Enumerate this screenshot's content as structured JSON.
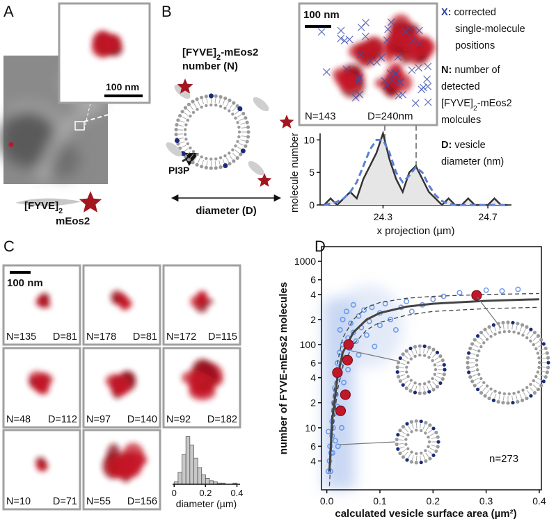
{
  "panel_labels": [
    "A",
    "B",
    "C",
    "D"
  ],
  "panel_a": {
    "scale_bar": "100 nm",
    "construct": {
      "base": "[FYVE]",
      "sub": "2"
    },
    "tag": "mEos2"
  },
  "panel_b": {
    "construct": {
      "base": "[FYVE]",
      "sub": "2",
      "rest": "-mEos2"
    },
    "construct_line2": "number (N)",
    "lipid": "PI3P",
    "diameter": "diameter (D)",
    "scale_bar": "100 nm",
    "n_label": "N=143",
    "d_label": "D=240nm",
    "legend_x": {
      "key": "X:",
      "lines": [
        "corrected",
        "single-molecule",
        "positions"
      ]
    },
    "legend_n": {
      "key": "N:",
      "lines": [
        "number of",
        "detected"
      ],
      "construct": {
        "base": "[FYVE]",
        "sub": "2",
        "rest": "-mEos2"
      },
      "last": "molcules"
    },
    "legend_d": {
      "key": "D:",
      "lines": [
        "vesicle",
        "diameter (nm)"
      ]
    }
  },
  "panel_c": {
    "scale_bar": "100 nm",
    "tiles": [
      {
        "n": "N=135",
        "d": "D=81"
      },
      {
        "n": "N=178",
        "d": "D=81"
      },
      {
        "n": "N=172",
        "d": "D=115"
      },
      {
        "n": "N=48",
        "d": "D=112"
      },
      {
        "n": "N=97",
        "d": "D=140"
      },
      {
        "n": "N=92",
        "d": "D=182"
      },
      {
        "n": "N=10",
        "d": "D=71"
      },
      {
        "n": "N=55",
        "d": "D=156"
      }
    ]
  },
  "chart_data": [
    {
      "type": "line",
      "xlabel": "x projection (µm)",
      "ylabel": "molecule number",
      "x": [
        24.075,
        24.1,
        24.125,
        24.15,
        24.175,
        24.2,
        24.225,
        24.25,
        24.275,
        24.3,
        24.325,
        24.35,
        24.375,
        24.4,
        24.425,
        24.45,
        24.475,
        24.5,
        24.525,
        24.55,
        24.575,
        24.6,
        24.625,
        24.65,
        24.675,
        24.7,
        24.725,
        24.75,
        24.775
      ],
      "series": [
        {
          "color": "#333333",
          "dashed": false,
          "values": [
            0,
            1,
            0,
            1,
            2,
            1,
            4,
            6,
            8,
            11,
            7,
            4,
            2,
            5,
            6,
            4,
            2,
            1,
            0,
            1,
            0,
            0,
            1,
            0,
            0,
            0,
            1,
            0,
            0
          ]
        },
        {
          "color": "#5b7fd6",
          "dashed": true,
          "values": [
            0,
            0.2,
            0.5,
            1,
            2,
            3.5,
            6,
            8.5,
            10,
            10,
            8,
            5,
            3.5,
            4.5,
            5.8,
            5,
            3,
            1.5,
            0.6,
            0.2,
            0,
            0,
            0,
            0,
            0,
            0,
            0,
            0,
            0
          ]
        }
      ],
      "xlim": [
        24.06,
        24.79
      ],
      "xticks": [
        24.3,
        24.7
      ],
      "ylim": [
        0,
        11
      ],
      "yticks": [
        0,
        5,
        10
      ]
    },
    {
      "type": "histogram",
      "xlabel": "diameter (µm)",
      "bins": [
        0,
        0.025,
        0.05,
        0.075,
        0.1,
        0.125,
        0.15,
        0.175,
        0.2,
        0.225,
        0.25,
        0.275,
        0.3,
        0.325,
        0.35,
        0.375,
        0.4
      ],
      "values": [
        2,
        10,
        25,
        40,
        33,
        22,
        14,
        8,
        5,
        3,
        2,
        1,
        1,
        0,
        0,
        1
      ],
      "color": "#c8c8c8",
      "xlim": [
        -0.01,
        0.42
      ],
      "xticks": [
        0,
        0.2,
        0.4
      ],
      "ylim": [
        0,
        42
      ]
    },
    {
      "type": "scatter",
      "xlabel": "calculated vesicle surface area (µm²)",
      "ylabel": "number of FYVE-mEos2 molecules",
      "annotation": "n=273",
      "log_y": true,
      "xlim": [
        -0.01,
        0.404
      ],
      "xticks": [
        {
          "value": 0,
          "label": "0.0"
        },
        0.1,
        0.2,
        0.3,
        0.4
      ],
      "ylim": [
        1.8,
        1500
      ],
      "yticks": [
        1000,
        {
          "value": 600,
          "label": "6"
        },
        {
          "value": 400,
          "label": "4"
        },
        {
          "value": 200,
          "label": "2"
        },
        100,
        {
          "value": 60,
          "label": "6"
        },
        {
          "value": 40,
          "label": "4"
        },
        {
          "value": 20,
          "label": "2"
        },
        10,
        6,
        4
      ],
      "series": [
        {
          "color": "#5b8ee8",
          "x": [
            0.003,
            0.005,
            0.006,
            0.008,
            0.01,
            0.01,
            0.012,
            0.013,
            0.015,
            0.015,
            0.017,
            0.018,
            0.02,
            0.02,
            0.022,
            0.024,
            0.025,
            0.027,
            0.03,
            0.03,
            0.032,
            0.035,
            0.037,
            0.04,
            0.04,
            0.043,
            0.045,
            0.05,
            0.05,
            0.055,
            0.06,
            0.06,
            0.065,
            0.07,
            0.075,
            0.08,
            0.085,
            0.09,
            0.1,
            0.1,
            0.11,
            0.12,
            0.13,
            0.14,
            0.15,
            0.16,
            0.18,
            0.2,
            0.22,
            0.25,
            0.28,
            0.3,
            0.33,
            0.36,
            0.003,
            0.007,
            0.011,
            0.016,
            0.021,
            0.028
          ],
          "values": [
            3,
            4,
            6,
            5,
            8,
            12,
            10,
            20,
            15,
            30,
            25,
            45,
            60,
            18,
            40,
            80,
            150,
            55,
            100,
            200,
            35,
            70,
            250,
            120,
            50,
            90,
            180,
            140,
            300,
            110,
            220,
            75,
            160,
            260,
            130,
            190,
            280,
            95,
            240,
            170,
            310,
            200,
            150,
            280,
            330,
            250,
            300,
            350,
            380,
            420,
            400,
            450,
            440,
            460,
            9,
            3,
            5,
            7,
            6,
            10
          ]
        },
        {
          "color": "#c0182a",
          "x": [
            0.026,
            0.035,
            0.02,
            0.039,
            0.041,
            0.282
          ],
          "values": [
            16,
            25,
            46,
            65,
            100,
            390
          ]
        }
      ],
      "fit": {
        "color": "#444444",
        "x": [
          0.005,
          0.01,
          0.02,
          0.03,
          0.05,
          0.075,
          0.1,
          0.15,
          0.2,
          0.3,
          0.4
        ],
        "values": [
          3,
          12,
          40,
          80,
          140,
          200,
          240,
          285,
          310,
          335,
          350
        ],
        "upper": [
          4,
          18,
          60,
          120,
          200,
          280,
          320,
          360,
          380,
          400,
          410
        ],
        "lower": [
          2,
          8,
          28,
          55,
          100,
          150,
          185,
          225,
          250,
          270,
          280
        ]
      }
    }
  ]
}
